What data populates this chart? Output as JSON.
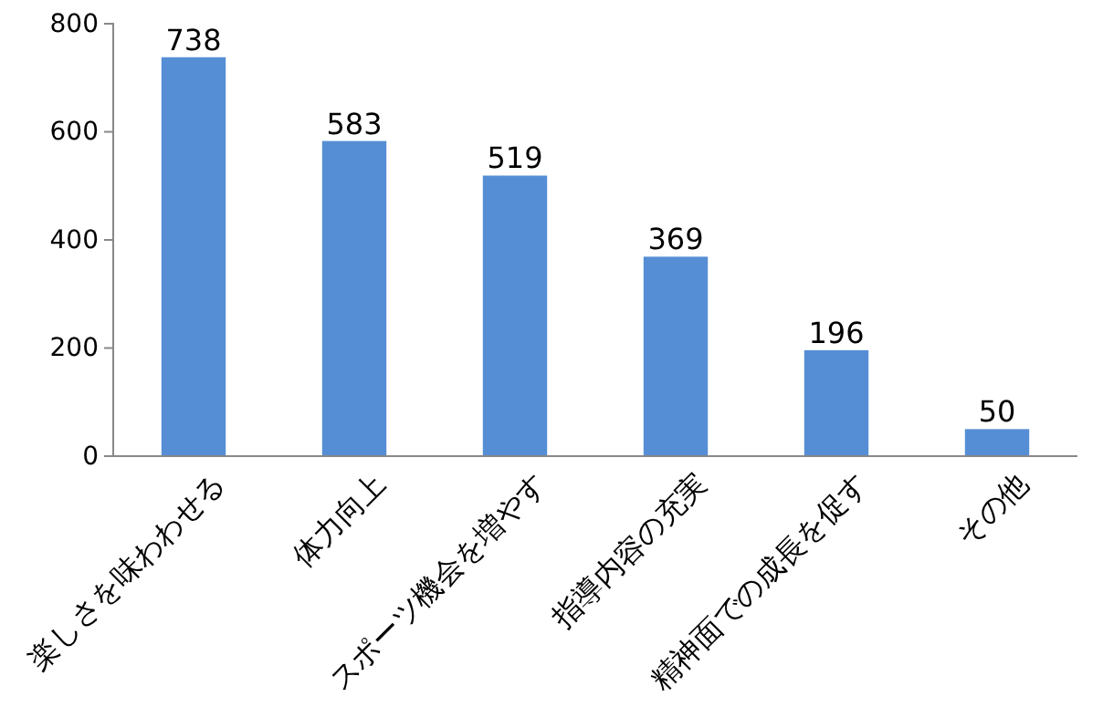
{
  "chart_data": {
    "type": "bar",
    "categories": [
      "楽しさを味わわせる",
      "体力向上",
      "スポーツ機会を増やす",
      "指導内容の充実",
      "精神面での成長を促す",
      "その他"
    ],
    "values": [
      738,
      583,
      519,
      369,
      196,
      50
    ],
    "color": "#558ed5",
    "ylim": [
      0,
      800
    ],
    "yticks": [
      0,
      200,
      400,
      600,
      800
    ],
    "data_labels": true
  }
}
